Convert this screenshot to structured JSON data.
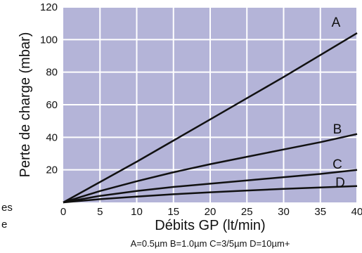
{
  "chart_data": {
    "type": "line",
    "title": "",
    "xlabel": "Débits GP (lt/min)",
    "ylabel": "Perte de charge  (mbar)",
    "caption": "A=0.5µm B=1.0µm C=3/5µm D=10µm+",
    "xlim": [
      0,
      40
    ],
    "ylim": [
      0,
      120
    ],
    "xticks": [
      "0",
      "5",
      "10",
      "15",
      "20",
      "25",
      "30",
      "35",
      "40"
    ],
    "yticks": [
      "20",
      "40",
      "60",
      "80",
      "100",
      "120"
    ],
    "grid": true,
    "colors": {
      "plot_bg": "#b4b4d8",
      "grid": "#ffffff",
      "line": "#111111"
    },
    "series": [
      {
        "name": "A",
        "x": [
          0,
          5,
          10,
          15,
          20,
          25,
          30,
          35,
          40
        ],
        "y": [
          0,
          12.5,
          25,
          38,
          51,
          64,
          77,
          90.5,
          104
        ]
      },
      {
        "name": "B",
        "x": [
          0,
          5,
          10,
          15,
          20,
          25,
          30,
          35,
          40
        ],
        "y": [
          0,
          7,
          13,
          18.5,
          23.5,
          28,
          32.5,
          37,
          42
        ]
      },
      {
        "name": "C",
        "x": [
          0,
          5,
          10,
          15,
          20,
          25,
          30,
          35,
          40
        ],
        "y": [
          0,
          4,
          7,
          9.5,
          11.5,
          13.5,
          15.5,
          17.5,
          20
        ]
      },
      {
        "name": "D",
        "x": [
          0,
          5,
          10,
          15,
          20,
          25,
          30,
          35,
          40
        ],
        "y": [
          0,
          2,
          3.6,
          5,
          6.2,
          7.3,
          8.3,
          9.2,
          10
        ]
      }
    ]
  },
  "edge_fragments": [
    "es",
    "e"
  ]
}
